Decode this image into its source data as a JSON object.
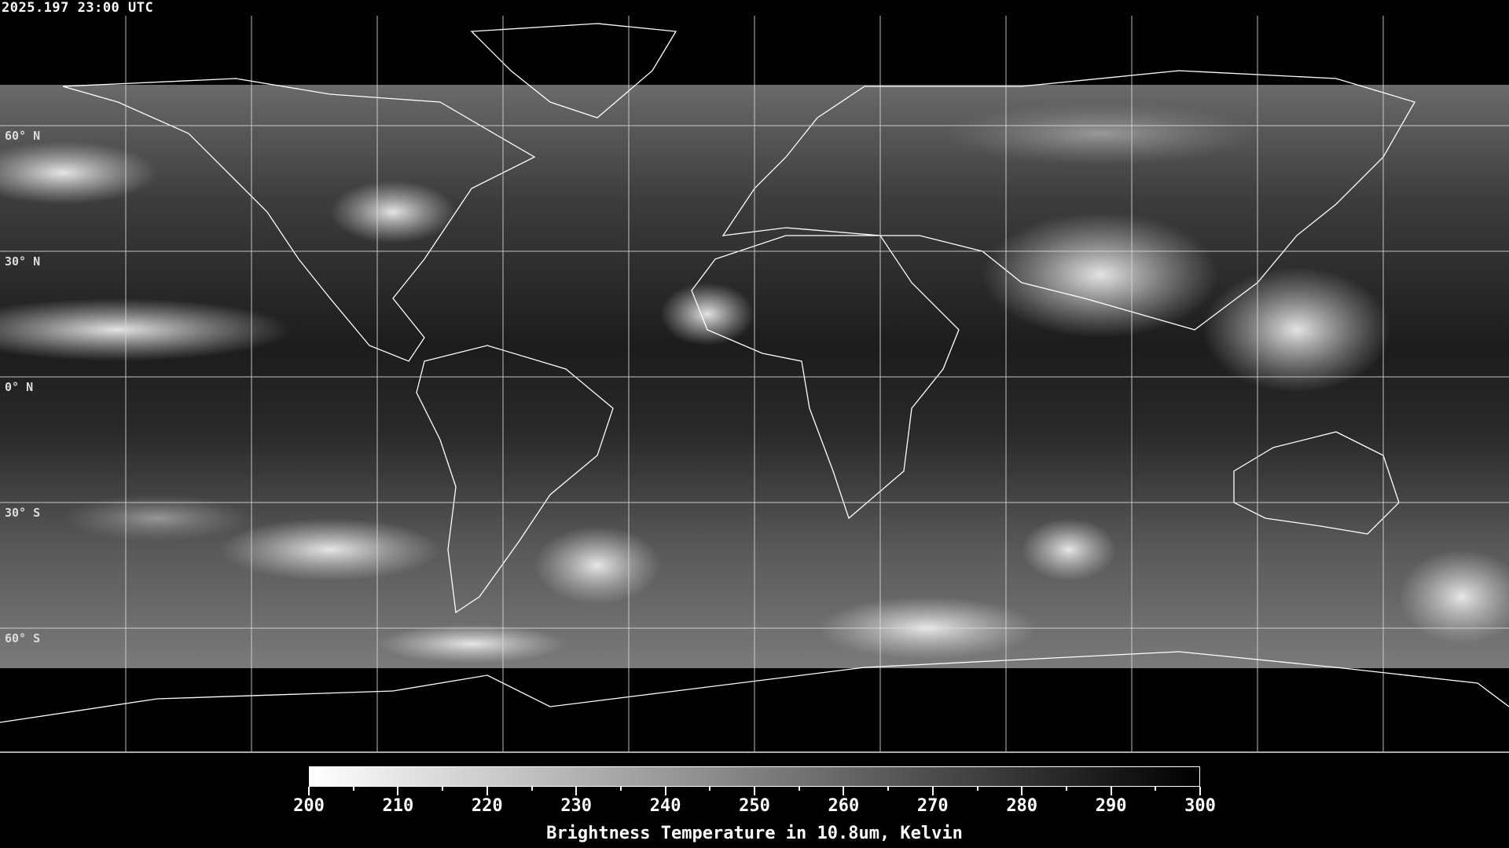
{
  "header": {
    "timestamp": "2025.197 23:00 UTC"
  },
  "map": {
    "projection": "equirectangular",
    "lat_labels": [
      "60° N",
      "30° N",
      "0° N",
      "30° S",
      "60° S"
    ],
    "grid_spacing_degrees": 30,
    "coastline_color": "#ffffff"
  },
  "colorbar": {
    "min": 200,
    "max": 300,
    "colors": [
      "#ffffff",
      "#000000"
    ],
    "tick_labels": [
      "200",
      "210",
      "220",
      "230",
      "240",
      "250",
      "260",
      "270",
      "280",
      "290",
      "300"
    ],
    "title": "Brightness Temperature in 10.8um, Kelvin"
  }
}
